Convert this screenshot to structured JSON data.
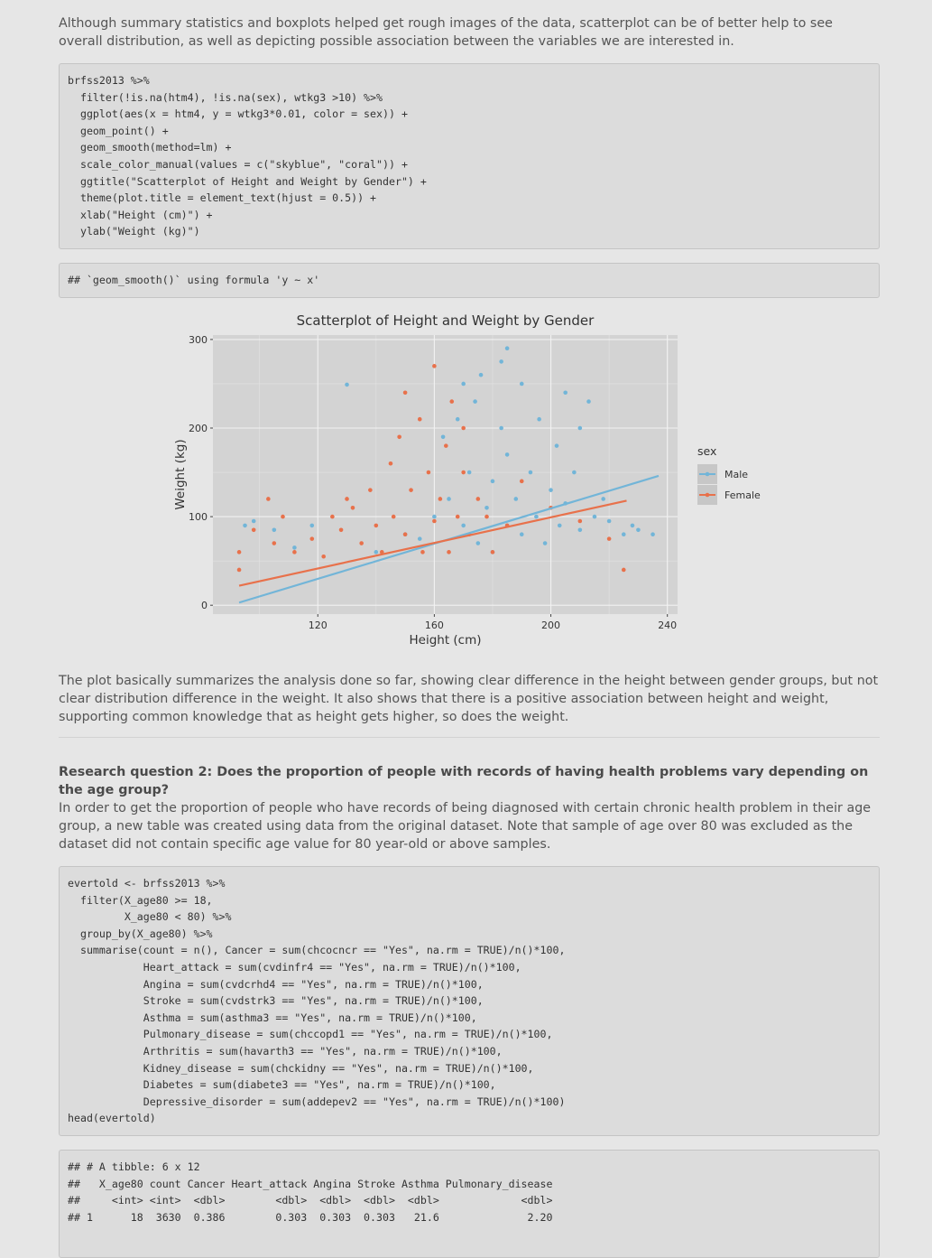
{
  "paragraphs": [
    "Although summary statistics and boxplots helped get rough images of the data, scatterplot can be of better help to see overall distribution, as well as depicting possible association between the variables we are interested in.",
    "The plot basically summarizes the analysis done so far, showing clear difference in the height between gender groups, but not clear distribution difference in the weight. It also shows that there is a positive association between height and weight, supporting common knowledge that as height gets higher, so does the weight.",
    "Research question 2: Does the proportion of people with records of having health problems vary depending on the age group?",
    "In order to get the proportion of people who have records of being diagnosed with certain chronic health problem in their age group, a new table was created using data from the original dataset. Note that sample of age over 80 was excluded as the dataset did not contain specific age value for 80 year-old or above samples."
  ],
  "code_blocks": [
    [
      "brfss2013 %>%",
      "  filter(!is.na(htm4), !is.na(sex), wtkg3 >10) %>%",
      "  ggplot(aes(x = htm4, y = wtkg3*0.01, color = sex)) +",
      "  geom_point() +",
      "  geom_smooth(method=lm) +",
      "  scale_color_manual(values = c(\"skyblue\", \"coral\")) +",
      "  ggtitle(\"Scatterplot of Height and Weight by Gender\") +",
      "  theme(plot.title = element_text(hjust = 0.5)) +",
      "  xlab(\"Height (cm)\") +",
      "  ylab(\"Weight (kg)\")"
    ],
    [
      "## `geom_smooth()` using formula 'y ~ x'"
    ],
    [
      "evertold <- brfss2013 %>%",
      "  filter(X_age80 >= 18,",
      "         X_age80 < 80) %>%",
      "  group_by(X_age80) %>%",
      "  summarise(count = n(), Cancer = sum(chcocncr == \"Yes\", na.rm = TRUE)/n()*100,",
      "            Heart_attack = sum(cvdinfr4 == \"Yes\", na.rm = TRUE)/n()*100,",
      "            Angina = sum(cvdcrhd4 == \"Yes\", na.rm = TRUE)/n()*100,",
      "            Stroke = sum(cvdstrk3 == \"Yes\", na.rm = TRUE)/n()*100,",
      "            Asthma = sum(asthma3 == \"Yes\", na.rm = TRUE)/n()*100,",
      "            Pulmonary_disease = sum(chccopd1 == \"Yes\", na.rm = TRUE)/n()*100,",
      "            Arthritis = sum(havarth3 == \"Yes\", na.rm = TRUE)/n()*100,",
      "            Kidney_disease = sum(chckidny == \"Yes\", na.rm = TRUE)/n()*100,",
      "            Diabetes = sum(diabete3 == \"Yes\", na.rm = TRUE)/n()*100,",
      "            Depressive_disorder = sum(addepev2 == \"Yes\", na.rm = TRUE)/n()*100)",
      "head(evertold)"
    ],
    [
      "## # A tibble: 6 x 12",
      "##   X_age80 count Cancer Heart_attack Angina Stroke Asthma Pulmonary_disease",
      "##     <int> <int>  <dbl>        <dbl>  <dbl>  <dbl>  <dbl>             <dbl>",
      "## 1      18  3630  0.386        0.303  0.303  0.303   21.6              2.20"
    ]
  ],
  "chart_data": {
    "type": "scatter",
    "title": "Scatterplot of Height and Weight by Gender",
    "x_label": "Height (cm)",
    "y_label": "Weight (kg)",
    "legend_title": "sex",
    "xlim": [
      84,
      243.5
    ],
    "ylim": [
      -10,
      305
    ],
    "xticks": [
      120,
      160,
      200,
      240
    ],
    "yticks": [
      0,
      100,
      200,
      300
    ],
    "grid": true,
    "series": [
      {
        "name": "Male",
        "color": "#72b5d8",
        "x": [
          95,
          98,
          105,
          112,
          118,
          130,
          140,
          150,
          155,
          160,
          163,
          165,
          168,
          170,
          172,
          174,
          175,
          176,
          178,
          180,
          180,
          183,
          185,
          185,
          188,
          190,
          190,
          193,
          195,
          196,
          198,
          200,
          202,
          203,
          205,
          208,
          210,
          213,
          215,
          218,
          220,
          225,
          228,
          230,
          235,
          185,
          183,
          205,
          210,
          170
        ],
        "values": [
          90,
          95,
          85,
          65,
          90,
          249,
          60,
          80,
          75,
          100,
          190,
          120,
          210,
          90,
          150,
          230,
          70,
          260,
          110,
          140,
          60,
          200,
          90,
          170,
          120,
          250,
          80,
          150,
          100,
          210,
          70,
          130,
          180,
          90,
          115,
          150,
          85,
          230,
          100,
          120,
          95,
          80,
          90,
          85,
          80,
          290,
          275,
          240,
          200,
          250
        ],
        "fit": {
          "x": [
            93,
            237
          ],
          "values": [
            3,
            146
          ]
        }
      },
      {
        "name": "Female",
        "color": "#e8714b",
        "x": [
          93,
          93,
          98,
          103,
          105,
          108,
          112,
          118,
          122,
          125,
          128,
          132,
          135,
          138,
          140,
          142,
          145,
          146,
          148,
          150,
          152,
          155,
          156,
          158,
          160,
          160,
          162,
          164,
          165,
          166,
          168,
          170,
          172,
          175,
          178,
          180,
          185,
          190,
          200,
          210,
          220,
          225,
          130,
          150,
          170
        ],
        "values": [
          60,
          40,
          85,
          120,
          70,
          100,
          60,
          75,
          55,
          100,
          85,
          110,
          70,
          130,
          90,
          60,
          160,
          100,
          190,
          80,
          130,
          210,
          60,
          150,
          270,
          95,
          120,
          180,
          60,
          230,
          100,
          150,
          80,
          120,
          100,
          60,
          90,
          140,
          110,
          95,
          75,
          40,
          120,
          240,
          200
        ],
        "fit": {
          "x": [
            93,
            226
          ],
          "values": [
            22,
            118
          ]
        }
      }
    ]
  }
}
